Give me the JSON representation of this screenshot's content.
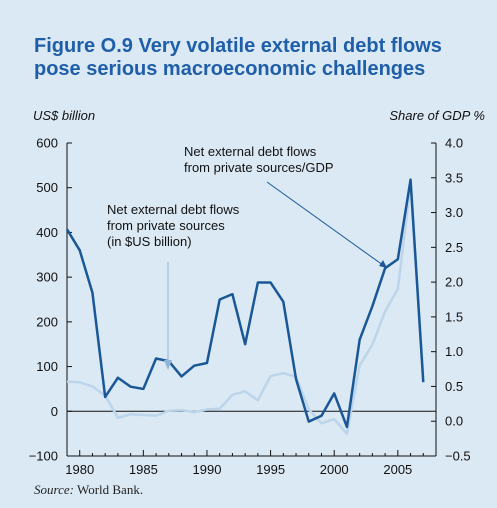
{
  "figure": {
    "title": "Figure O.9  Very volatile external debt flows pose serious macroeconomic challenges",
    "source_label": "Source:",
    "source_text": " World Bank."
  },
  "colors": {
    "panel_bg": "#dbe9f4",
    "title": "#1f5ea8",
    "usd_series": "#1a5796",
    "gdp_series": "#bcd5ea"
  },
  "chart_data": {
    "type": "line",
    "ylabel_left": "US$ billion",
    "ylabel_right": "Share of GDP %",
    "ylim_left": [
      -100,
      600
    ],
    "ylim_right": [
      -0.5,
      4.0
    ],
    "xlim": [
      1979,
      2008
    ],
    "x_ticks": [
      "1980",
      "1985",
      "1990",
      "1995",
      "2000",
      "2005"
    ],
    "y_ticks_left": [
      "−100",
      "0",
      "100",
      "200",
      "300",
      "400",
      "500",
      "600"
    ],
    "y_ticks_right": [
      "−0.5",
      "0.0",
      "0.5",
      "1.0",
      "1.5",
      "2.0",
      "2.5",
      "3.0",
      "3.5",
      "4.0"
    ],
    "grid": false,
    "series": [
      {
        "axis": "left",
        "x": [
          1979,
          1980,
          1981,
          1982,
          1983,
          1984,
          1985,
          1986,
          1987,
          1988,
          1989,
          1990,
          1991,
          1992,
          1993,
          1994,
          1995,
          1996,
          1997,
          1998,
          1999,
          2000,
          2001,
          2002,
          2003,
          2004,
          2005,
          2006,
          2007
        ],
        "values": [
          407,
          360,
          265,
          32,
          75,
          55,
          50,
          118,
          112,
          78,
          102,
          108,
          250,
          262,
          150,
          288,
          288,
          245,
          72,
          -23,
          -10,
          40,
          -35,
          160,
          235,
          320,
          340,
          518,
          65
        ]
      },
      {
        "axis": "right",
        "x": [
          1979,
          1980,
          1981,
          1982,
          1983,
          1984,
          1985,
          1986,
          1987,
          1988,
          1989,
          1990,
          1991,
          1992,
          1993,
          1994,
          1995,
          1996,
          1997,
          1998,
          1999,
          2000,
          2001,
          2002,
          2003,
          2004,
          2005,
          2006,
          2007
        ],
        "values": [
          0.57,
          0.56,
          0.5,
          0.37,
          0.05,
          0.1,
          0.09,
          0.08,
          0.15,
          0.16,
          0.13,
          0.17,
          0.18,
          0.38,
          0.43,
          0.3,
          0.65,
          0.69,
          0.64,
          0.17,
          -0.03,
          0.03,
          -0.18,
          0.8,
          1.1,
          1.58,
          1.9,
          3.4,
          0.63
        ]
      }
    ],
    "annotations": [
      "Net external debt flows\nfrom private sources/GDP",
      "Net external debt flows\nfrom private sources\n(in $US billion)"
    ]
  }
}
